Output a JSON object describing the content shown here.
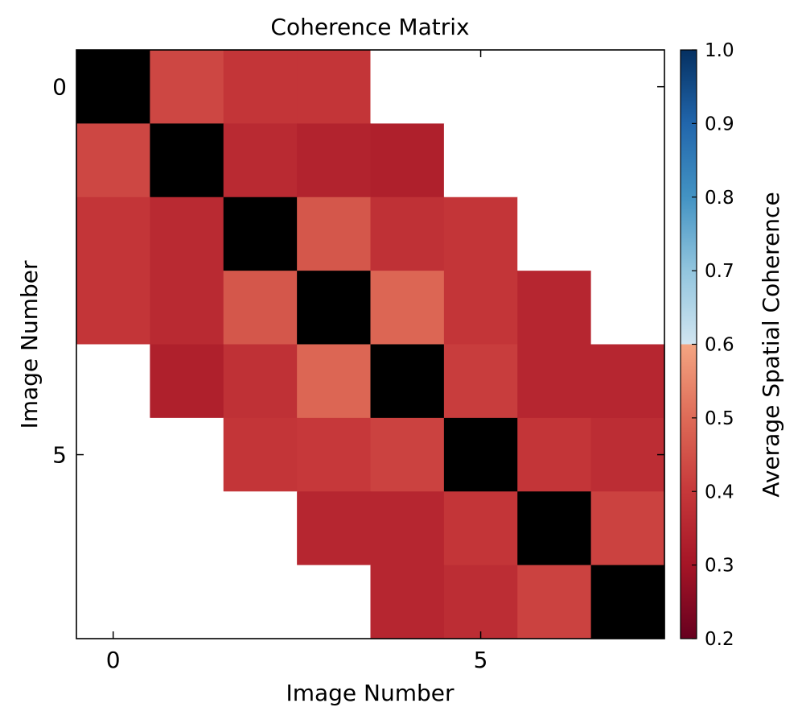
{
  "chart_data": {
    "type": "heatmap",
    "title": "Coherence Matrix",
    "xlabel": "Image Number",
    "ylabel": "Image Number",
    "x_ticks": [
      0,
      5
    ],
    "y_ticks": [
      0,
      5
    ],
    "size": 8,
    "matrix": [
      [
        null,
        0.43,
        0.39,
        0.39,
        null,
        null,
        null,
        null
      ],
      [
        0.43,
        null,
        0.36,
        0.34,
        0.33,
        null,
        null,
        null
      ],
      [
        0.39,
        0.36,
        null,
        0.46,
        0.38,
        0.39,
        null,
        null
      ],
      [
        0.39,
        0.36,
        0.46,
        null,
        0.49,
        0.39,
        0.35,
        null
      ],
      [
        null,
        0.33,
        0.38,
        0.49,
        null,
        0.41,
        0.35,
        0.35
      ],
      [
        null,
        null,
        0.39,
        0.4,
        0.42,
        null,
        0.39,
        0.37
      ],
      [
        null,
        null,
        null,
        0.35,
        0.35,
        0.39,
        null,
        0.42
      ],
      [
        null,
        null,
        null,
        null,
        0.35,
        0.37,
        0.42,
        null
      ]
    ],
    "diagonal_color": "#000000",
    "missing_color": "#ffffff",
    "colorbar": {
      "label": "Average Spatial Coherence",
      "range": [
        0.2,
        1.0
      ],
      "ticks": [
        "0.2",
        "0.3",
        "0.4",
        "0.5",
        "0.6",
        "0.7",
        "0.8",
        "0.9",
        "1.0"
      ],
      "colormap": "RdBu"
    }
  }
}
